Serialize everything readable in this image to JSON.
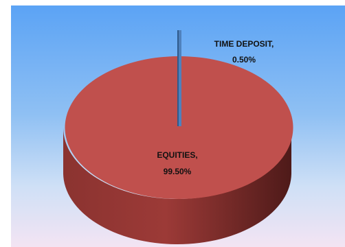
{
  "chart_data": {
    "type": "pie",
    "categories": [
      "TIME DEPOSIT",
      "EQUITIES"
    ],
    "values": [
      0.5,
      99.5
    ],
    "value_labels": [
      "0.50%",
      "99.50%"
    ],
    "label_names": [
      "TIME DEPOSIT,",
      "EQUITIES,"
    ],
    "colors": {
      "equities_top": "#c0504d",
      "equities_side": "#7a2a28",
      "time_deposit": "#4f81bd"
    },
    "style": "3d-pie",
    "legend": "none"
  }
}
